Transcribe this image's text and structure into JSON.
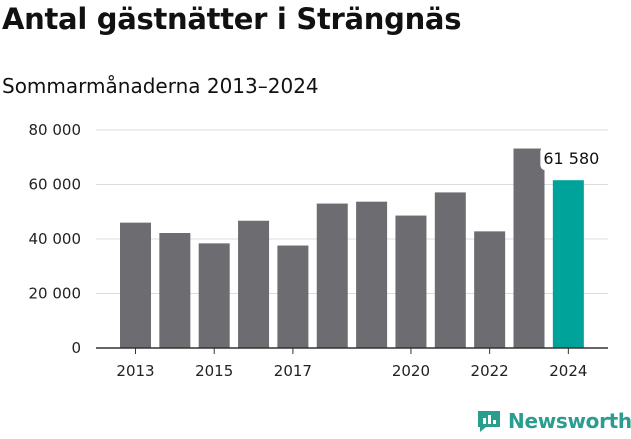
{
  "chart_data": {
    "type": "bar",
    "title": "Antal gästnätter i Strängnäs",
    "subtitle": "Sommarmånaderna 2013–2024",
    "categories": [
      "2013",
      "2014",
      "2015",
      "2016",
      "2017",
      "2018",
      "2019",
      "2020",
      "2021",
      "2022",
      "2023",
      "2024"
    ],
    "values": [
      46000,
      42200,
      38400,
      46700,
      37600,
      53000,
      53700,
      48600,
      57100,
      42800,
      73200,
      61580
    ],
    "highlight_index": 11,
    "highlight_label": "61 580",
    "x_tick_labels": [
      {
        "category": "2013",
        "label": "2013"
      },
      {
        "category": "2015",
        "label": "2015"
      },
      {
        "category": "2017",
        "label": "2017"
      },
      {
        "category": "2020",
        "label": "2020"
      },
      {
        "category": "2022",
        "label": "2022"
      },
      {
        "category": "2024",
        "label": "2024"
      }
    ],
    "y_ticks": [
      0,
      20000,
      40000,
      60000,
      80000
    ],
    "y_tick_labels": [
      "0",
      "20 000",
      "40 000",
      "60 000",
      "80 000"
    ],
    "ylim": [
      0,
      80000
    ],
    "xlabel": "",
    "ylabel": "",
    "grid": true,
    "colors": {
      "bar": "#6d6c70",
      "highlight": "#00a39a",
      "grid": "#dcdcdc",
      "axis": "#333333"
    }
  },
  "brand": {
    "name": "Newsworthy",
    "icon": "newsworthy-chart-icon",
    "color": "#2a9d8f"
  }
}
